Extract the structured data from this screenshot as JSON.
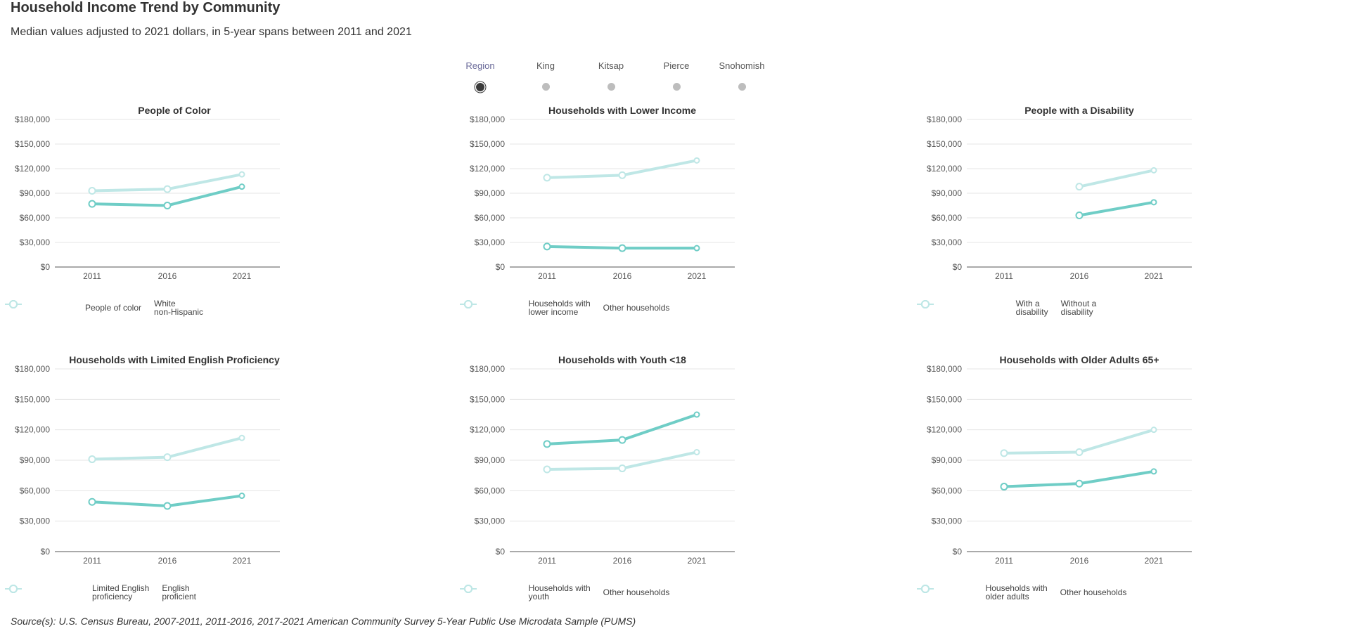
{
  "page": {
    "title": "Household Income Trend by Community",
    "subtitle": "Median values adjusted to 2021 dollars, in 5-year spans between 2011 and 2021",
    "source": "Source(s): U.S. Census Bureau, 2007-2011, 2011-2016, 2017-2021 American Community Survey 5-Year Public Use Microdata Sample (PUMS)"
  },
  "selector": {
    "items": [
      {
        "label": "Region",
        "active": true
      },
      {
        "label": "King",
        "active": false
      },
      {
        "label": "Kitsap",
        "active": false
      },
      {
        "label": "Pierce",
        "active": false
      },
      {
        "label": "Snohomish",
        "active": false
      }
    ]
  },
  "colors": {
    "primary": "#6fcdc6",
    "secondary": "#bfe7e6",
    "axis": "#555555",
    "grid": "#e4e4e4",
    "text": "#333333"
  },
  "chart_data": [
    {
      "type": "line",
      "title": "People of Color",
      "x": [
        "2011",
        "2016",
        "2021"
      ],
      "yticks": [
        "$0",
        "$30,000",
        "$60,000",
        "$90,000",
        "$120,000",
        "$150,000",
        "$180,000"
      ],
      "ylim": [
        0,
        180000
      ],
      "grid": true,
      "legend_position": "bottom",
      "series": [
        {
          "name": "People of color",
          "values": [
            77000,
            75000,
            98000
          ],
          "role": "primary"
        },
        {
          "name": "White non-Hispanic",
          "values": [
            93000,
            95000,
            113000
          ],
          "role": "secondary"
        }
      ]
    },
    {
      "type": "line",
      "title": "Households with Lower Income",
      "x": [
        "2011",
        "2016",
        "2021"
      ],
      "yticks": [
        "$0",
        "$30,000",
        "$60,000",
        "$90,000",
        "$120,000",
        "$150,000",
        "$180,000"
      ],
      "ylim": [
        0,
        180000
      ],
      "grid": true,
      "legend_position": "bottom",
      "series": [
        {
          "name": "Households with lower income",
          "values": [
            25000,
            23000,
            23000
          ],
          "role": "primary"
        },
        {
          "name": "Other households",
          "values": [
            109000,
            112000,
            130000
          ],
          "role": "secondary"
        }
      ]
    },
    {
      "type": "line",
      "title": "People with a Disability",
      "x": [
        "2011",
        "2016",
        "2021"
      ],
      "yticks": [
        "$0",
        "$30,000",
        "$60,000",
        "$90,000",
        "$120,000",
        "$150,000",
        "$180,000"
      ],
      "ylim": [
        0,
        180000
      ],
      "grid": true,
      "legend_position": "bottom",
      "series": [
        {
          "name": "With a disability",
          "values": [
            null,
            63000,
            79000
          ],
          "role": "primary"
        },
        {
          "name": "Without a disability",
          "values": [
            null,
            98000,
            118000
          ],
          "role": "secondary"
        }
      ]
    },
    {
      "type": "line",
      "title": "Households with Limited English Proficiency",
      "x": [
        "2011",
        "2016",
        "2021"
      ],
      "yticks": [
        "$0",
        "$30,000",
        "$60,000",
        "$90,000",
        "$120,000",
        "$150,000",
        "$180,000"
      ],
      "ylim": [
        0,
        180000
      ],
      "grid": true,
      "legend_position": "bottom",
      "series": [
        {
          "name": "Limited English proficiency",
          "values": [
            49000,
            45000,
            55000
          ],
          "role": "primary"
        },
        {
          "name": "English proficient",
          "values": [
            91000,
            93000,
            112000
          ],
          "role": "secondary"
        }
      ]
    },
    {
      "type": "line",
      "title": "Households with Youth <18",
      "x": [
        "2011",
        "2016",
        "2021"
      ],
      "yticks": [
        "$0",
        "$30,000",
        "$60,000",
        "$90,000",
        "$120,000",
        "$150,000",
        "$180,000"
      ],
      "ylim": [
        0,
        180000
      ],
      "grid": true,
      "legend_position": "bottom",
      "series": [
        {
          "name": "Households with youth",
          "values": [
            106000,
            110000,
            135000
          ],
          "role": "primary"
        },
        {
          "name": "Other households",
          "values": [
            81000,
            82000,
            98000
          ],
          "role": "secondary"
        }
      ]
    },
    {
      "type": "line",
      "title": "Households with Older Adults 65+",
      "x": [
        "2011",
        "2016",
        "2021"
      ],
      "yticks": [
        "$0",
        "$30,000",
        "$60,000",
        "$90,000",
        "$120,000",
        "$150,000",
        "$180,000"
      ],
      "ylim": [
        0,
        180000
      ],
      "grid": true,
      "legend_position": "bottom",
      "series": [
        {
          "name": "Households with older adults",
          "values": [
            64000,
            67000,
            79000
          ],
          "role": "primary"
        },
        {
          "name": "Other households",
          "values": [
            97000,
            98000,
            120000
          ],
          "role": "secondary"
        }
      ]
    }
  ],
  "legends": [
    [
      [
        "People of color"
      ],
      [
        "White",
        "non-Hispanic"
      ]
    ],
    [
      [
        "Households with",
        "lower income"
      ],
      [
        "Other households"
      ]
    ],
    [
      [
        "With a",
        "disability"
      ],
      [
        "Without a",
        "disability"
      ]
    ],
    [
      [
        "Limited English",
        "proficiency"
      ],
      [
        "English",
        "proficient"
      ]
    ],
    [
      [
        "Households with",
        "youth"
      ],
      [
        "Other households"
      ]
    ],
    [
      [
        "Households with",
        "older adults"
      ],
      [
        "Other households"
      ]
    ]
  ]
}
